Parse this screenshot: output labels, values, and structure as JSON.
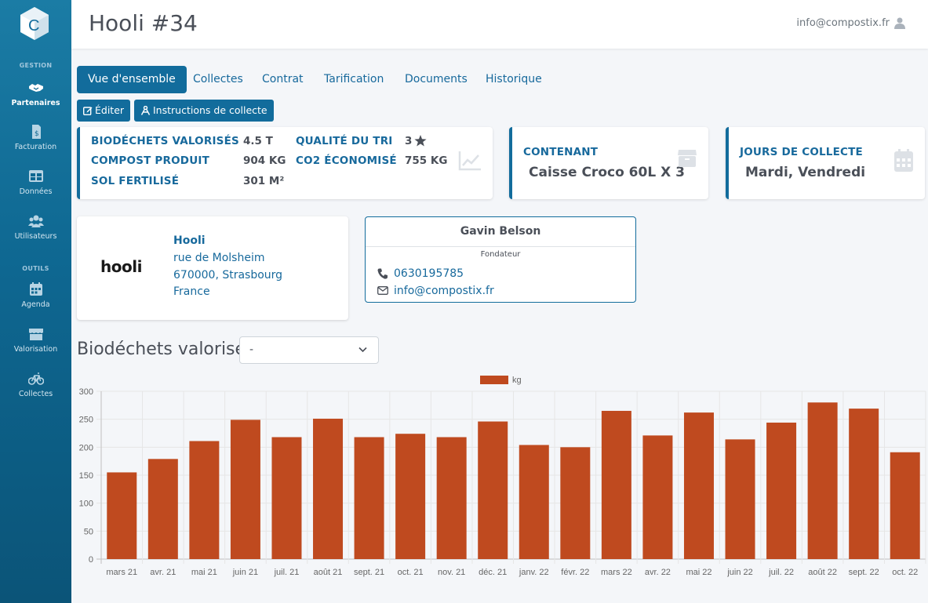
{
  "colors": {
    "brand": "#126c9c",
    "bar": "#bf4a1f",
    "sidebar": "#0e6791"
  },
  "sidebar": {
    "logo_letter": "C",
    "sections": [
      {
        "title": "GESTION",
        "items": [
          {
            "label": "Partenaires",
            "icon": "handshake-icon",
            "active": true
          },
          {
            "label": "Facturation",
            "icon": "invoice-icon"
          },
          {
            "label": "Données",
            "icon": "table-icon"
          },
          {
            "label": "Utilisateurs",
            "icon": "users-icon"
          }
        ]
      },
      {
        "title": "OUTILS",
        "items": [
          {
            "label": "Agenda",
            "icon": "calendar-icon"
          },
          {
            "label": "Valorisation",
            "icon": "store-icon"
          },
          {
            "label": "Collectes",
            "icon": "bicycle-icon"
          }
        ]
      }
    ]
  },
  "header": {
    "title": "Hooli #34",
    "user_email": "info@compostix.fr"
  },
  "tabs": [
    "Vue d'ensemble",
    "Collectes",
    "Contrat",
    "Tarification",
    "Documents",
    "Historique"
  ],
  "actions": {
    "edit": "Éditer",
    "instructions": "Instructions de collecte"
  },
  "stats": {
    "valorises_label": "BIODÉCHETS VALORISÉS",
    "valorises_value": "4.5 T",
    "compost_label": "COMPOST PRODUIT",
    "compost_value": "904 KG",
    "sol_label": "SOL FERTILISÉ",
    "sol_value": "301 M²",
    "qualite_label": "QUALITÉ DU TRI",
    "qualite_value": "3",
    "co2_label": "CO2 ÉCONOMISÉ",
    "co2_value": "755 KG"
  },
  "contenant": {
    "label": "CONTENANT",
    "value": "Caisse Croco 60L X 3"
  },
  "jours": {
    "label": "JOURS DE COLLECTE",
    "value": "Mardi, Vendredi"
  },
  "partner": {
    "logo_text": "hooli",
    "name": "Hooli",
    "street": "rue de Molsheim",
    "city": "670000, Strasbourg",
    "country": "France"
  },
  "contact": {
    "name": "Gavin Belson",
    "role": "Fondateur",
    "phone": "0630195785",
    "email": "info@compostix.fr"
  },
  "section_title": "Biodéchets valorisés",
  "filter": {
    "value": "-"
  },
  "chart_data": {
    "type": "bar",
    "categories": [
      "mars 21",
      "avr. 21",
      "mai 21",
      "juin 21",
      "juil. 21",
      "août 21",
      "sept. 21",
      "oct. 21",
      "nov. 21",
      "déc. 21",
      "janv. 22",
      "févr. 22",
      "mars 22",
      "avr. 22",
      "mai 22",
      "juin 22",
      "juil. 22",
      "août 22",
      "sept. 22",
      "oct. 22"
    ],
    "series": [
      {
        "name": "kg",
        "values": [
          155,
          179,
          211,
          249,
          218,
          251,
          218,
          224,
          218,
          246,
          204,
          200,
          265,
          221,
          262,
          214,
          244,
          280,
          269,
          191
        ]
      }
    ],
    "ylim": [
      0,
      300
    ],
    "yticks": [
      0,
      50,
      100,
      150,
      200,
      250,
      300
    ],
    "grid": true,
    "legend": "top"
  }
}
